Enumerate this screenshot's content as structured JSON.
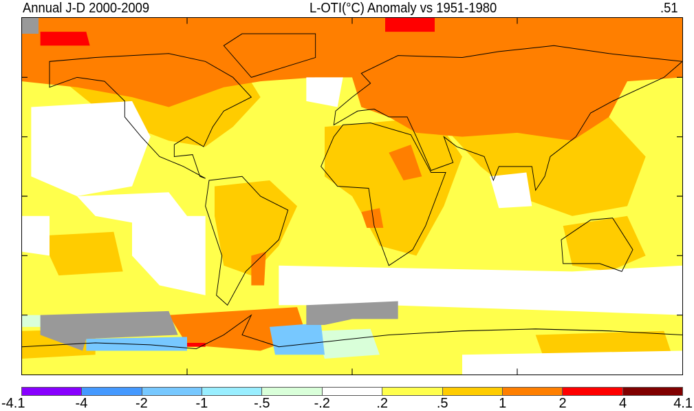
{
  "header": {
    "left_title": "Annual J-D 2000-2009",
    "center_title": "L-OTI(°C) Anomaly vs 1951-1980",
    "global_mean": ".51"
  },
  "legend": {
    "labels": [
      "-4.1",
      "-4",
      "-2",
      "-1",
      "-.5",
      "-.2",
      ".2",
      ".5",
      "1",
      "2",
      "4",
      "4.1"
    ],
    "colors": [
      "#8800ff",
      "#4499ff",
      "#77c8ff",
      "#99eeff",
      "#d9ffd9",
      "#ffffff",
      "#ffff4c",
      "#ffcc00",
      "#ff7f00",
      "#ff0000",
      "#800000"
    ],
    "missing_color": "#999999"
  }
}
